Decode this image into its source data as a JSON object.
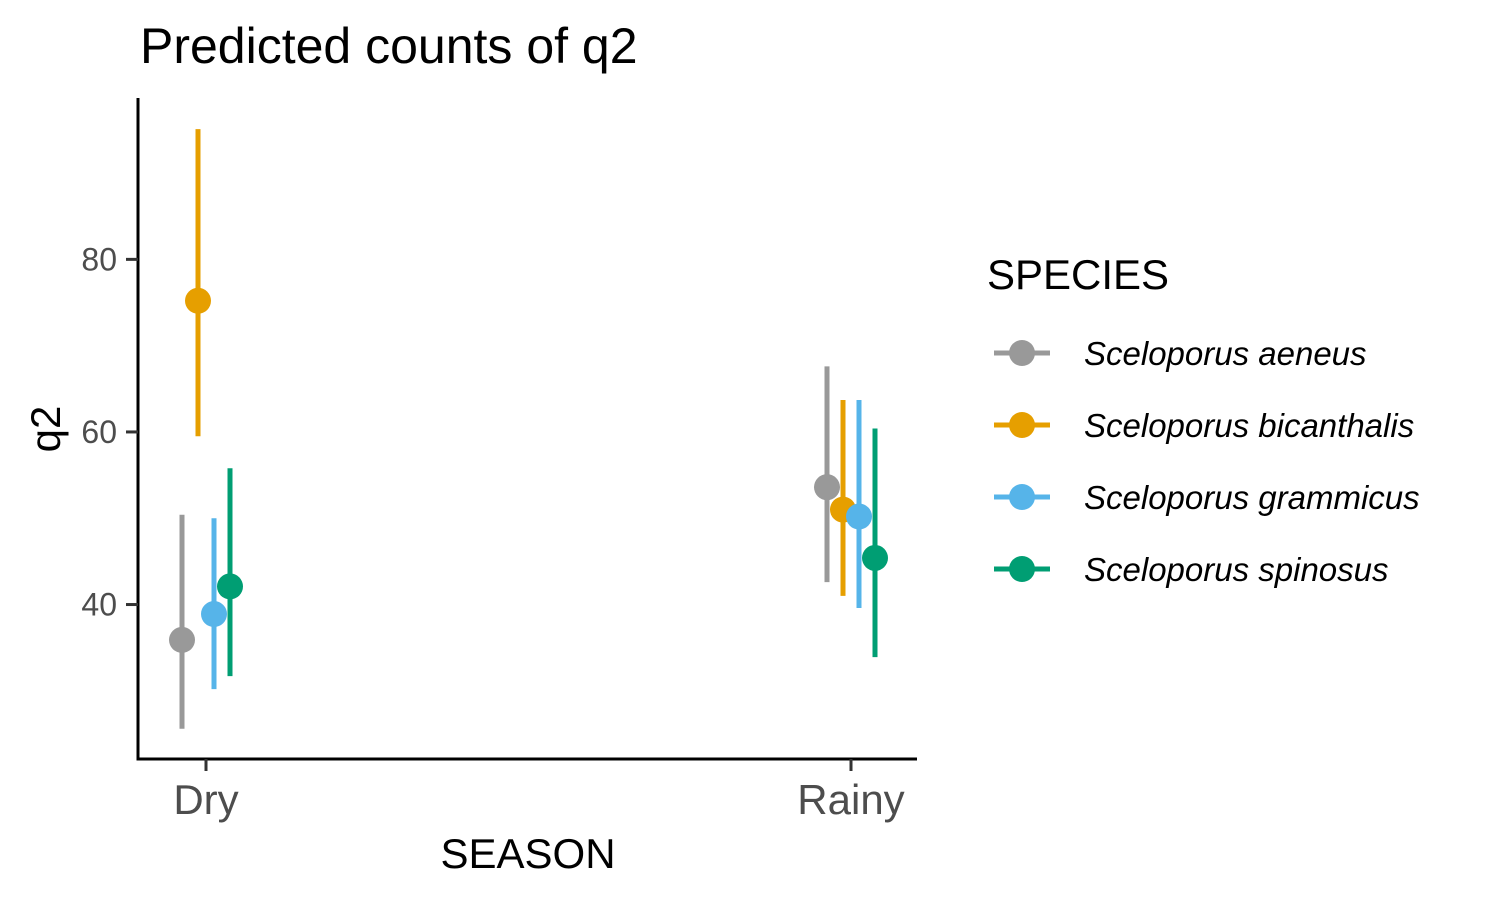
{
  "chart_data": {
    "type": "scatter",
    "title": "Predicted counts of q2",
    "xlabel": "SEASON",
    "ylabel": "q2",
    "categories": [
      "Dry",
      "Rainy"
    ],
    "ylim": [
      22.1,
      98.7
    ],
    "yticks": [
      40,
      60,
      80
    ],
    "grid": false,
    "legend": {
      "title": "SPECIES",
      "placement": "right"
    },
    "series": [
      {
        "name": "Sceloporus aeneus",
        "color": "#999999",
        "points": [
          {
            "x": "Dry",
            "y": 35.9,
            "low": 25.6,
            "high": 50.4
          },
          {
            "x": "Rainy",
            "y": 53.6,
            "low": 42.6,
            "high": 67.6
          }
        ]
      },
      {
        "name": "Sceloporus bicanthalis",
        "color": "#E69F00",
        "points": [
          {
            "x": "Dry",
            "y": 75.2,
            "low": 59.5,
            "high": 95.1
          },
          {
            "x": "Rainy",
            "y": 51.0,
            "low": 41.0,
            "high": 63.7
          }
        ]
      },
      {
        "name": "Sceloporus grammicus",
        "color": "#56B4E9",
        "points": [
          {
            "x": "Dry",
            "y": 38.9,
            "low": 30.2,
            "high": 50.0
          },
          {
            "x": "Rainy",
            "y": 50.2,
            "low": 39.6,
            "high": 63.7
          }
        ]
      },
      {
        "name": "Sceloporus spinosus",
        "color": "#009E73",
        "points": [
          {
            "x": "Dry",
            "y": 42.1,
            "low": 31.7,
            "high": 55.8
          },
          {
            "x": "Rainy",
            "y": 45.4,
            "low": 33.9,
            "high": 60.4
          }
        ]
      }
    ]
  }
}
